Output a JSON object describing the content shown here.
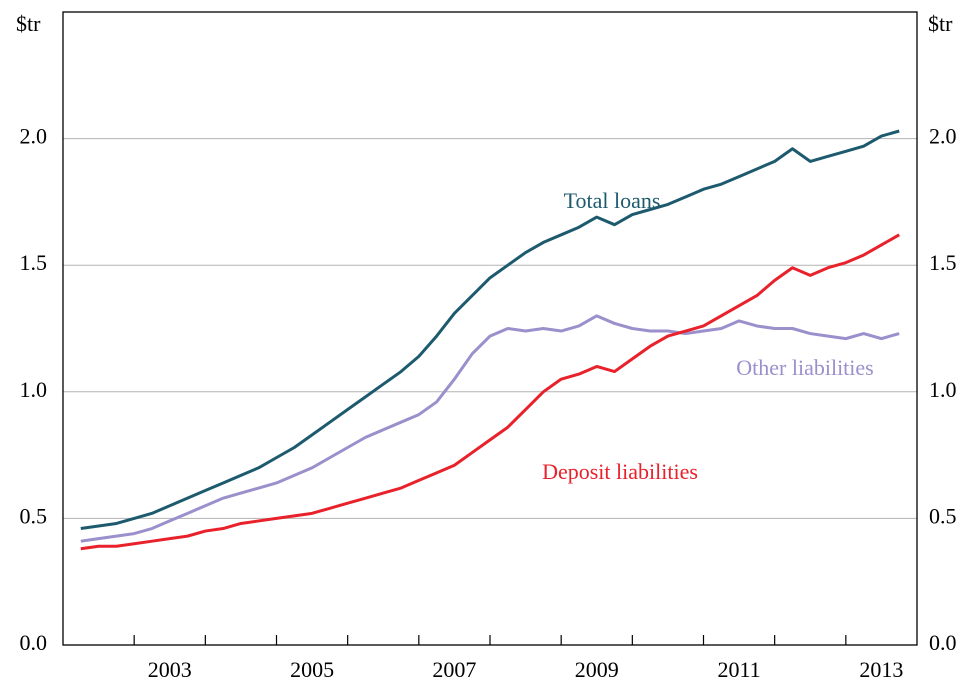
{
  "chart_data": {
    "type": "line",
    "y_label": "$tr",
    "x": [
      2002.25,
      2002.5,
      2002.75,
      2003,
      2003.25,
      2003.5,
      2003.75,
      2004,
      2004.25,
      2004.5,
      2004.75,
      2005,
      2005.25,
      2005.5,
      2005.75,
      2006,
      2006.25,
      2006.5,
      2006.75,
      2007,
      2007.25,
      2007.5,
      2007.75,
      2008,
      2008.25,
      2008.5,
      2008.75,
      2009,
      2009.25,
      2009.5,
      2009.75,
      2010,
      2010.25,
      2010.5,
      2010.75,
      2011,
      2011.25,
      2011.5,
      2011.75,
      2012,
      2012.25,
      2012.5,
      2012.75,
      2013,
      2013.25,
      2013.5,
      2013.75
    ],
    "series": [
      {
        "name": "Total loans",
        "color": "#1d5a6e",
        "values": [
          0.46,
          0.47,
          0.48,
          0.5,
          0.52,
          0.55,
          0.58,
          0.61,
          0.64,
          0.67,
          0.7,
          0.74,
          0.78,
          0.83,
          0.88,
          0.93,
          0.98,
          1.03,
          1.08,
          1.14,
          1.22,
          1.31,
          1.38,
          1.45,
          1.5,
          1.55,
          1.59,
          1.62,
          1.65,
          1.69,
          1.66,
          1.7,
          1.72,
          1.74,
          1.77,
          1.8,
          1.82,
          1.85,
          1.88,
          1.91,
          1.96,
          1.91,
          1.93,
          1.95,
          1.97,
          2.01,
          2.03
        ]
      },
      {
        "name": "Other liabilities",
        "color": "#9b8fcc",
        "values": [
          0.41,
          0.42,
          0.43,
          0.44,
          0.46,
          0.49,
          0.52,
          0.55,
          0.58,
          0.6,
          0.62,
          0.64,
          0.67,
          0.7,
          0.74,
          0.78,
          0.82,
          0.85,
          0.88,
          0.91,
          0.96,
          1.05,
          1.15,
          1.22,
          1.25,
          1.24,
          1.25,
          1.24,
          1.26,
          1.3,
          1.27,
          1.25,
          1.24,
          1.24,
          1.23,
          1.24,
          1.25,
          1.28,
          1.26,
          1.25,
          1.25,
          1.23,
          1.22,
          1.21,
          1.23,
          1.21,
          1.23
        ]
      },
      {
        "name": "Deposit liabilities",
        "color": "#e8212b",
        "values": [
          0.38,
          0.39,
          0.39,
          0.4,
          0.41,
          0.42,
          0.43,
          0.45,
          0.46,
          0.48,
          0.49,
          0.5,
          0.51,
          0.52,
          0.54,
          0.56,
          0.58,
          0.6,
          0.62,
          0.65,
          0.68,
          0.71,
          0.76,
          0.81,
          0.86,
          0.93,
          1.0,
          1.05,
          1.07,
          1.1,
          1.08,
          1.13,
          1.18,
          1.22,
          1.24,
          1.26,
          1.3,
          1.34,
          1.38,
          1.44,
          1.49,
          1.46,
          1.49,
          1.51,
          1.54,
          1.58,
          1.62
        ]
      }
    ],
    "xlim": [
      2002,
      2014
    ],
    "xticks": [
      2003,
      2004,
      2005,
      2006,
      2007,
      2008,
      2009,
      2010,
      2011,
      2012,
      2013
    ],
    "xlabels": [
      2003,
      2005,
      2007,
      2009,
      2011,
      2013
    ],
    "ylim": [
      0,
      2.5
    ],
    "yticks": [
      {
        "value": 0,
        "label": "0.0"
      },
      0.5,
      {
        "value": 1,
        "label": "1.0"
      },
      1.5,
      {
        "value": 2,
        "label": "2.0"
      }
    ],
    "grid": true
  }
}
